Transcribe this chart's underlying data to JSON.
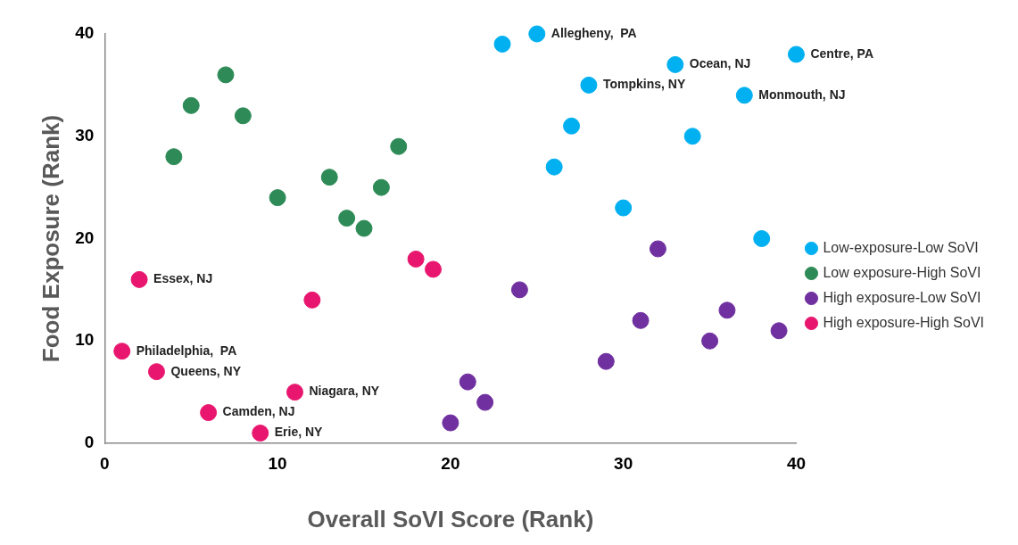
{
  "chart_data": {
    "type": "scatter",
    "xlabel": "Overall SoVI Score (Rank)",
    "ylabel": "Food Exposure (Rank)",
    "xlim": [
      0,
      40
    ],
    "xticks": [
      0,
      10,
      20,
      30,
      40
    ],
    "ylim": [
      0,
      40
    ],
    "yticks": [
      0,
      10,
      20,
      30,
      40
    ],
    "grid": false,
    "legend": "right",
    "marker": "circle",
    "series": [
      {
        "name": "Low-exposure-Low SoVI",
        "color": "#00b0f0",
        "x": [
          23,
          25,
          28,
          27,
          26,
          33,
          34,
          30,
          37,
          40,
          38
        ],
        "values": [
          39,
          40,
          35,
          31,
          27,
          37,
          30,
          23,
          34,
          38,
          20
        ]
      },
      {
        "name": "Low exposure-High SoVI",
        "color": "#2e8b57",
        "x": [
          4,
          5,
          7,
          8,
          10,
          13,
          14,
          15,
          16,
          17
        ],
        "values": [
          28,
          33,
          36,
          32,
          24,
          26,
          22,
          21,
          25,
          29
        ]
      },
      {
        "name": "High exposure-Low SoVI",
        "color": "#7030a0",
        "x": [
          24,
          32,
          31,
          29,
          21,
          22,
          20,
          35,
          36,
          39
        ],
        "values": [
          15,
          19,
          12,
          8,
          6,
          4,
          2,
          10,
          13,
          11
        ]
      },
      {
        "name": "High exposure-High SoVI",
        "color": "#e8166e",
        "x": [
          2,
          1,
          3,
          6,
          9,
          11,
          12,
          18,
          19
        ],
        "values": [
          16,
          9,
          7,
          3,
          1,
          5,
          14,
          18,
          17
        ]
      }
    ],
    "annotations": [
      {
        "text": "Allegheny,  PA",
        "x": 25,
        "y": 40
      },
      {
        "text": "Centre, PA",
        "x": 40,
        "y": 38
      },
      {
        "text": "Ocean, NJ",
        "x": 33,
        "y": 37
      },
      {
        "text": "Tompkins, NY",
        "x": 28,
        "y": 35
      },
      {
        "text": "Monmouth, NJ",
        "x": 37,
        "y": 34
      },
      {
        "text": "Essex, NJ",
        "x": 2,
        "y": 16
      },
      {
        "text": "Philadelphia,  PA",
        "x": 1,
        "y": 9
      },
      {
        "text": "Queens, NY",
        "x": 3,
        "y": 7
      },
      {
        "text": "Niagara, NY",
        "x": 11,
        "y": 5
      },
      {
        "text": "Camden, NJ",
        "x": 6,
        "y": 3
      },
      {
        "text": "Erie, NY",
        "x": 9,
        "y": 1
      }
    ]
  }
}
